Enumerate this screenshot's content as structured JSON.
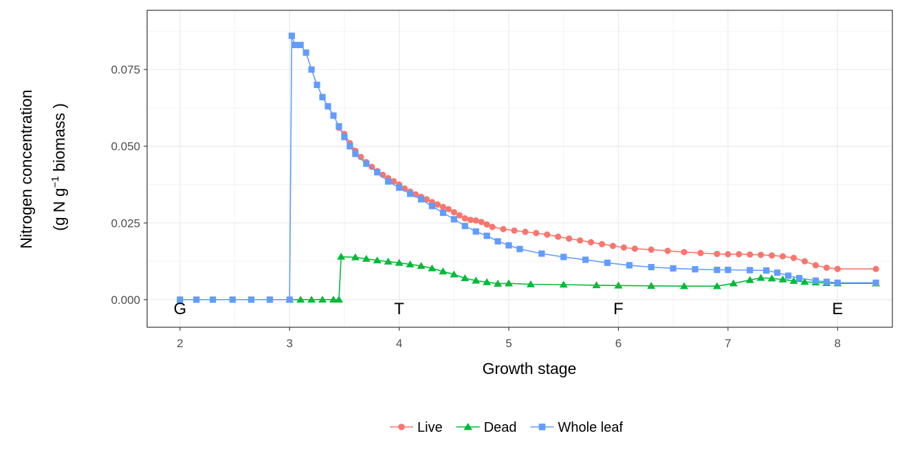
{
  "chart_data": {
    "type": "line",
    "xlabel": "Growth stage",
    "ylabel_line1": "Nitrogen concentration",
    "ylabel_line2": {
      "prefix": "(g N  g",
      "superscript": "−1",
      "suffix": "  biomass )"
    },
    "xlim": [
      1.7,
      8.5
    ],
    "ylim": [
      -0.009,
      0.0943
    ],
    "x_ticks": [
      "2",
      "3",
      "4",
      "5",
      "6",
      "7",
      "8"
    ],
    "y_ticks": [
      "0.000",
      "0.025",
      "0.050",
      "0.075"
    ],
    "grid": true,
    "legend_position": "bottom",
    "stage_labels": [
      {
        "label": "G",
        "x": 2.0
      },
      {
        "label": "T",
        "x": 4.0
      },
      {
        "label": "F",
        "x": 6.0
      },
      {
        "label": "E",
        "x": 8.0
      }
    ],
    "series": [
      {
        "name": "Live",
        "color": "#F8766D",
        "marker": "circle",
        "points": [
          [
            3.45,
            0.056
          ],
          [
            3.5,
            0.054
          ],
          [
            3.55,
            0.051
          ],
          [
            3.6,
            0.0485
          ],
          [
            3.65,
            0.0465
          ],
          [
            3.7,
            0.0448
          ],
          [
            3.75,
            0.0433
          ],
          [
            3.8,
            0.0419
          ],
          [
            3.85,
            0.0407
          ],
          [
            3.9,
            0.0396
          ],
          [
            3.95,
            0.0386
          ],
          [
            4.0,
            0.0375
          ],
          [
            4.05,
            0.0362
          ],
          [
            4.1,
            0.0352
          ],
          [
            4.15,
            0.0343
          ],
          [
            4.2,
            0.0335
          ],
          [
            4.25,
            0.0327
          ],
          [
            4.3,
            0.0318
          ],
          [
            4.35,
            0.031
          ],
          [
            4.4,
            0.0302
          ],
          [
            4.45,
            0.0295
          ],
          [
            4.5,
            0.0285
          ],
          [
            4.55,
            0.0275
          ],
          [
            4.6,
            0.0265
          ],
          [
            4.65,
            0.026
          ],
          [
            4.7,
            0.0258
          ],
          [
            4.75,
            0.0253
          ],
          [
            4.8,
            0.0245
          ],
          [
            4.85,
            0.0237
          ],
          [
            4.95,
            0.023
          ],
          [
            5.05,
            0.0225
          ],
          [
            5.15,
            0.0221
          ],
          [
            5.25,
            0.0217
          ],
          [
            5.35,
            0.0212
          ],
          [
            5.45,
            0.0205
          ],
          [
            5.55,
            0.0199
          ],
          [
            5.65,
            0.0193
          ],
          [
            5.75,
            0.0187
          ],
          [
            5.85,
            0.0181
          ],
          [
            5.95,
            0.0175
          ],
          [
            6.05,
            0.017
          ],
          [
            6.15,
            0.0166
          ],
          [
            6.3,
            0.0163
          ],
          [
            6.45,
            0.0159
          ],
          [
            6.6,
            0.0155
          ],
          [
            6.75,
            0.0152
          ],
          [
            6.9,
            0.0149
          ],
          [
            7.0,
            0.0148
          ],
          [
            7.1,
            0.0148
          ],
          [
            7.2,
            0.0147
          ],
          [
            7.3,
            0.0146
          ],
          [
            7.4,
            0.0144
          ],
          [
            7.5,
            0.0141
          ],
          [
            7.6,
            0.0136
          ],
          [
            7.7,
            0.0125
          ],
          [
            7.8,
            0.0112
          ],
          [
            7.9,
            0.0104
          ],
          [
            8.0,
            0.01
          ],
          [
            8.35,
            0.01
          ]
        ]
      },
      {
        "name": "Dead",
        "color": "#00BA38",
        "marker": "triangle",
        "points": [
          [
            3.0,
            0.0
          ],
          [
            3.1,
            0.0
          ],
          [
            3.2,
            0.0
          ],
          [
            3.3,
            0.0
          ],
          [
            3.4,
            0.0
          ],
          [
            3.45,
            0.0
          ],
          [
            3.47,
            0.014
          ],
          [
            3.6,
            0.0138
          ],
          [
            3.7,
            0.0133
          ],
          [
            3.8,
            0.0128
          ],
          [
            3.9,
            0.0124
          ],
          [
            4.0,
            0.012
          ],
          [
            4.1,
            0.0115
          ],
          [
            4.2,
            0.011
          ],
          [
            4.3,
            0.0102
          ],
          [
            4.4,
            0.0092
          ],
          [
            4.5,
            0.0082
          ],
          [
            4.6,
            0.007
          ],
          [
            4.7,
            0.0062
          ],
          [
            4.8,
            0.0057
          ],
          [
            4.9,
            0.0052
          ],
          [
            5.0,
            0.0053
          ],
          [
            5.2,
            0.005
          ],
          [
            5.5,
            0.0049
          ],
          [
            5.8,
            0.0047
          ],
          [
            6.0,
            0.0046
          ],
          [
            6.3,
            0.0045
          ],
          [
            6.6,
            0.0044
          ],
          [
            6.9,
            0.0044
          ],
          [
            7.05,
            0.0053
          ],
          [
            7.2,
            0.0064
          ],
          [
            7.3,
            0.0071
          ],
          [
            7.4,
            0.0069
          ],
          [
            7.5,
            0.0066
          ],
          [
            7.6,
            0.0061
          ],
          [
            7.7,
            0.0058
          ],
          [
            7.8,
            0.0056
          ],
          [
            7.9,
            0.0054
          ],
          [
            8.0,
            0.0053
          ],
          [
            8.35,
            0.0053
          ]
        ]
      },
      {
        "name": "Whole leaf",
        "color": "#619CFF",
        "marker": "square",
        "points": [
          [
            2.0,
            0.0
          ],
          [
            2.15,
            0.0
          ],
          [
            2.3,
            0.0
          ],
          [
            2.48,
            0.0
          ],
          [
            2.65,
            0.0
          ],
          [
            2.82,
            0.0
          ],
          [
            3.0,
            0.0
          ],
          [
            3.02,
            0.086
          ],
          [
            3.05,
            0.083
          ],
          [
            3.1,
            0.083
          ],
          [
            3.15,
            0.0805
          ],
          [
            3.2,
            0.075
          ],
          [
            3.25,
            0.07
          ],
          [
            3.3,
            0.066
          ],
          [
            3.35,
            0.063
          ],
          [
            3.4,
            0.06
          ],
          [
            3.45,
            0.0565
          ],
          [
            3.5,
            0.053
          ],
          [
            3.55,
            0.05
          ],
          [
            3.6,
            0.0475
          ],
          [
            3.7,
            0.0443
          ],
          [
            3.8,
            0.0415
          ],
          [
            3.9,
            0.0385
          ],
          [
            4.0,
            0.0365
          ],
          [
            4.1,
            0.0345
          ],
          [
            4.2,
            0.0327
          ],
          [
            4.3,
            0.0305
          ],
          [
            4.4,
            0.0283
          ],
          [
            4.5,
            0.0262
          ],
          [
            4.6,
            0.024
          ],
          [
            4.7,
            0.0222
          ],
          [
            4.8,
            0.0208
          ],
          [
            4.9,
            0.019
          ],
          [
            5.0,
            0.0177
          ],
          [
            5.1,
            0.0165
          ],
          [
            5.3,
            0.015
          ],
          [
            5.5,
            0.0139
          ],
          [
            5.7,
            0.013
          ],
          [
            5.9,
            0.012
          ],
          [
            6.1,
            0.0112
          ],
          [
            6.3,
            0.0106
          ],
          [
            6.5,
            0.0102
          ],
          [
            6.7,
            0.0099
          ],
          [
            6.9,
            0.0097
          ],
          [
            7.0,
            0.0097
          ],
          [
            7.2,
            0.0096
          ],
          [
            7.35,
            0.0095
          ],
          [
            7.45,
            0.0088
          ],
          [
            7.55,
            0.0078
          ],
          [
            7.65,
            0.007
          ],
          [
            7.8,
            0.0062
          ],
          [
            7.9,
            0.0058
          ],
          [
            8.0,
            0.0055
          ],
          [
            8.35,
            0.0055
          ]
        ]
      }
    ]
  }
}
